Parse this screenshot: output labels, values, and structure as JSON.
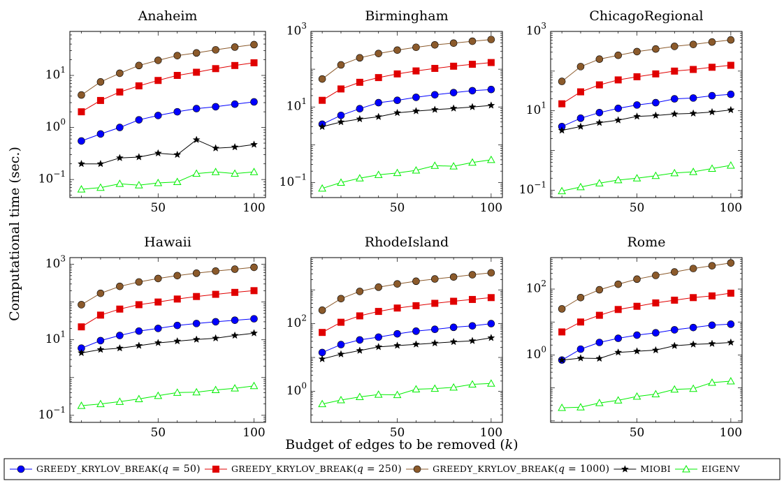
{
  "figure": {
    "ylabel": "Computational time (sec.)",
    "xlabel": "Budget of edges to be removed (k)"
  },
  "legend": [
    {
      "label": "GREEDY_KRYLOV_BREAK(q = 50)",
      "color": "#0000ff",
      "marker": "circle"
    },
    {
      "label": "GREEDY_KRYLOV_BREAK(q = 250)",
      "color": "#e00000",
      "marker": "square"
    },
    {
      "label": "GREEDY_KRYLOV_BREAK(q = 1000)",
      "color": "#8b5a2b",
      "marker": "circle"
    },
    {
      "label": "MIOBI",
      "color": "#000000",
      "marker": "star"
    },
    {
      "label": "EIGENV",
      "color": "#00ee00",
      "marker": "triangle"
    }
  ],
  "chart_data": [
    {
      "type": "line",
      "title": "Anaheim",
      "yscale": "log",
      "ylim": [
        0.045,
        70
      ],
      "xlim": [
        4,
        106
      ],
      "yticks": [
        {
          "value": 0.1,
          "label": "10^-1"
        },
        {
          "value": 1,
          "label": "10^0"
        },
        {
          "value": 10,
          "label": "10^1"
        }
      ],
      "xticks": [
        50,
        100
      ],
      "x": [
        10,
        20,
        30,
        40,
        50,
        60,
        70,
        80,
        90,
        100
      ],
      "series": [
        {
          "name": "GREEDY_KRYLOV_BREAK(q = 50)",
          "values": [
            0.55,
            0.75,
            1.0,
            1.4,
            1.7,
            2.0,
            2.3,
            2.5,
            2.8,
            3.1
          ]
        },
        {
          "name": "GREEDY_KRYLOV_BREAK(q = 250)",
          "values": [
            2.0,
            3.3,
            4.8,
            6.3,
            8.0,
            10.0,
            11.5,
            13.5,
            15.5,
            17.5
          ]
        },
        {
          "name": "GREEDY_KRYLOV_BREAK(q = 1000)",
          "values": [
            4.2,
            7.5,
            11.0,
            15.5,
            19.5,
            24.0,
            27.0,
            31.0,
            35.0,
            39.0
          ]
        },
        {
          "name": "MIOBI",
          "values": [
            0.2,
            0.2,
            0.26,
            0.27,
            0.32,
            0.3,
            0.58,
            0.4,
            0.42,
            0.47
          ]
        },
        {
          "name": "EIGENV",
          "values": [
            0.065,
            0.07,
            0.083,
            0.078,
            0.086,
            0.09,
            0.13,
            0.14,
            0.13,
            0.14
          ]
        }
      ]
    },
    {
      "type": "line",
      "title": "Birmingham",
      "yscale": "log",
      "ylim": [
        0.04,
        1000
      ],
      "xlim": [
        4,
        106
      ],
      "yticks": [
        {
          "value": 0.1,
          "label": "10^-1"
        },
        {
          "value": 10,
          "label": "10^1"
        },
        {
          "value": 1000,
          "label": "10^3"
        }
      ],
      "xticks": [
        50,
        100
      ],
      "x": [
        10,
        20,
        30,
        40,
        50,
        60,
        70,
        80,
        90,
        100
      ],
      "series": [
        {
          "name": "GREEDY_KRYLOV_BREAK(q = 50)",
          "values": [
            3.5,
            6.0,
            9.0,
            13.0,
            15.0,
            18.0,
            21.0,
            24.0,
            27.0,
            29.0
          ]
        },
        {
          "name": "GREEDY_KRYLOV_BREAK(q = 250)",
          "values": [
            15.0,
            30.0,
            45.0,
            60.0,
            75.0,
            90.0,
            105.0,
            120.0,
            135.0,
            150.0
          ]
        },
        {
          "name": "GREEDY_KRYLOV_BREAK(q = 1000)",
          "values": [
            55,
            130,
            200,
            260,
            320,
            380,
            440,
            490,
            550,
            610
          ]
        },
        {
          "name": "MIOBI",
          "values": [
            3.0,
            4.0,
            4.8,
            5.5,
            7.0,
            7.8,
            8.5,
            9.2,
            10.0,
            11.0
          ]
        },
        {
          "name": "EIGENV",
          "values": [
            0.07,
            0.1,
            0.13,
            0.16,
            0.18,
            0.21,
            0.28,
            0.27,
            0.34,
            0.4
          ]
        }
      ]
    },
    {
      "type": "line",
      "title": "ChicagoRegional",
      "yscale": "log",
      "ylim": [
        0.065,
        1000
      ],
      "xlim": [
        4,
        106
      ],
      "yticks": [
        {
          "value": 0.1,
          "label": "10^-1"
        },
        {
          "value": 10,
          "label": "10^1"
        },
        {
          "value": 1000,
          "label": "10^3"
        }
      ],
      "xticks": [
        50,
        100
      ],
      "x": [
        10,
        20,
        30,
        40,
        50,
        60,
        70,
        80,
        90,
        100
      ],
      "series": [
        {
          "name": "GREEDY_KRYLOV_BREAK(q = 50)",
          "values": [
            4.0,
            6.5,
            9.0,
            11.5,
            14.0,
            16.0,
            20.0,
            21.0,
            24.0,
            26.0
          ]
        },
        {
          "name": "GREEDY_KRYLOV_BREAK(q = 250)",
          "values": [
            15.0,
            30.0,
            45.0,
            60.0,
            72.0,
            85.0,
            100.0,
            110.0,
            125.0,
            140.0
          ]
        },
        {
          "name": "GREEDY_KRYLOV_BREAK(q = 1000)",
          "values": [
            55,
            130,
            200,
            250,
            310,
            360,
            420,
            470,
            540,
            610
          ]
        },
        {
          "name": "MIOBI",
          "values": [
            3.2,
            4.0,
            5.0,
            5.8,
            7.2,
            7.6,
            8.3,
            8.6,
            9.3,
            10.5
          ]
        },
        {
          "name": "EIGENV",
          "values": [
            0.095,
            0.12,
            0.15,
            0.18,
            0.2,
            0.23,
            0.27,
            0.29,
            0.35,
            0.42
          ]
        }
      ]
    },
    {
      "type": "line",
      "title": "Hawaii",
      "yscale": "log",
      "ylim": [
        0.065,
        1500
      ],
      "xlim": [
        4,
        106
      ],
      "yticks": [
        {
          "value": 0.1,
          "label": "10^-1"
        },
        {
          "value": 10,
          "label": "10^1"
        },
        {
          "value": 1000,
          "label": "10^3"
        }
      ],
      "xticks": [
        50,
        100
      ],
      "x": [
        10,
        20,
        30,
        40,
        50,
        60,
        70,
        80,
        90,
        100
      ],
      "series": [
        {
          "name": "GREEDY_KRYLOV_BREAK(q = 50)",
          "values": [
            6.0,
            9.5,
            13.0,
            17.0,
            20.0,
            24.0,
            27.0,
            30.0,
            33.0,
            36.0
          ]
        },
        {
          "name": "GREEDY_KRYLOV_BREAK(q = 250)",
          "values": [
            22,
            45,
            65,
            85,
            100,
            120,
            140,
            160,
            180,
            200
          ]
        },
        {
          "name": "GREEDY_KRYLOV_BREAK(q = 1000)",
          "values": [
            85,
            170,
            260,
            340,
            420,
            500,
            580,
            660,
            740,
            830
          ]
        },
        {
          "name": "MIOBI",
          "values": [
            4.5,
            5.5,
            6.0,
            7.0,
            8.3,
            9.2,
            10.2,
            11.0,
            13.0,
            15.0
          ]
        },
        {
          "name": "EIGENV",
          "values": [
            0.18,
            0.2,
            0.23,
            0.27,
            0.33,
            0.4,
            0.41,
            0.47,
            0.52,
            0.6
          ]
        }
      ]
    },
    {
      "type": "line",
      "title": "RhodeIsland",
      "yscale": "log",
      "ylim": [
        0.12,
        9000
      ],
      "xlim": [
        4,
        106
      ],
      "yticks": [
        {
          "value": 1,
          "label": "10^0"
        },
        {
          "value": 100,
          "label": "10^2"
        }
      ],
      "xticks": [
        50,
        100
      ],
      "x": [
        10,
        20,
        30,
        40,
        50,
        60,
        70,
        80,
        90,
        100
      ],
      "series": [
        {
          "name": "GREEDY_KRYLOV_BREAK(q = 50)",
          "values": [
            14,
            24,
            33,
            40,
            50,
            60,
            68,
            78,
            86,
            100
          ]
        },
        {
          "name": "GREEDY_KRYLOV_BREAK(q = 250)",
          "values": [
            55,
            110,
            170,
            230,
            290,
            340,
            400,
            460,
            520,
            590
          ]
        },
        {
          "name": "GREEDY_KRYLOV_BREAK(q = 1000)",
          "values": [
            250,
            550,
            900,
            1200,
            1500,
            1800,
            2100,
            2400,
            2800,
            3200
          ]
        },
        {
          "name": "MIOBI",
          "values": [
            9,
            12.5,
            16,
            20.5,
            22.5,
            24.5,
            26.5,
            29,
            31,
            38
          ]
        },
        {
          "name": "EIGENV",
          "values": [
            0.42,
            0.55,
            0.68,
            0.8,
            0.78,
            1.15,
            1.2,
            1.3,
            1.6,
            1.7
          ]
        }
      ]
    },
    {
      "type": "line",
      "title": "Rome",
      "yscale": "log",
      "ylim": [
        0.009,
        900
      ],
      "xlim": [
        4,
        106
      ],
      "yticks": [
        {
          "value": 1,
          "label": "10^0"
        },
        {
          "value": 100,
          "label": "10^2"
        }
      ],
      "xticks": [
        50,
        100
      ],
      "x": [
        10,
        20,
        30,
        40,
        50,
        60,
        70,
        80,
        90,
        100
      ],
      "series": [
        {
          "name": "GREEDY_KRYLOV_BREAK(q = 50)",
          "values": [
            0.7,
            1.5,
            2.4,
            3.2,
            4.0,
            4.7,
            5.8,
            6.8,
            8.0,
            8.6
          ]
        },
        {
          "name": "GREEDY_KRYLOV_BREAK(q = 250)",
          "values": [
            5,
            10,
            16,
            24,
            30,
            38,
            46,
            55,
            62,
            75
          ]
        },
        {
          "name": "GREEDY_KRYLOV_BREAK(q = 1000)",
          "values": [
            25,
            55,
            95,
            140,
            200,
            260,
            330,
            420,
            510,
            620
          ]
        },
        {
          "name": "MIOBI",
          "values": [
            0.7,
            0.8,
            0.78,
            1.2,
            1.3,
            1.4,
            1.9,
            2.1,
            2.2,
            2.4
          ]
        },
        {
          "name": "EIGENV",
          "values": [
            0.025,
            0.026,
            0.035,
            0.042,
            0.055,
            0.065,
            0.09,
            0.095,
            0.145,
            0.16
          ]
        }
      ]
    }
  ]
}
